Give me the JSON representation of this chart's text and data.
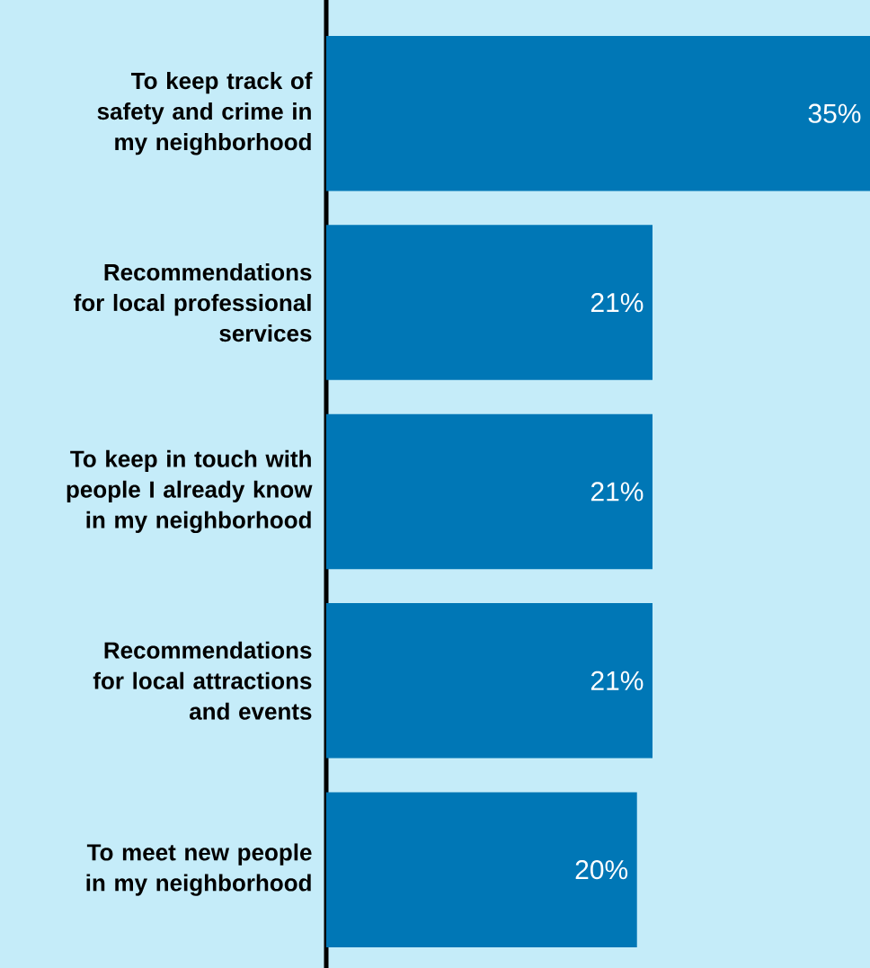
{
  "chart_data": {
    "type": "bar",
    "orientation": "horizontal",
    "categories": [
      "To keep track of safety and crime in my neighborhood",
      "Recommendations for local professional services",
      "To keep in touch with people I already know in my neighborhood",
      "Recommendations for local attractions and events",
      "To meet new people in my neighborhood"
    ],
    "values": [
      35,
      21,
      21,
      21,
      20
    ],
    "value_labels": [
      "35%",
      "21%",
      "21%",
      "21%",
      "20%"
    ],
    "color": "#0077b6",
    "xlim": [
      0,
      35
    ],
    "tick_labels": "y"
  }
}
